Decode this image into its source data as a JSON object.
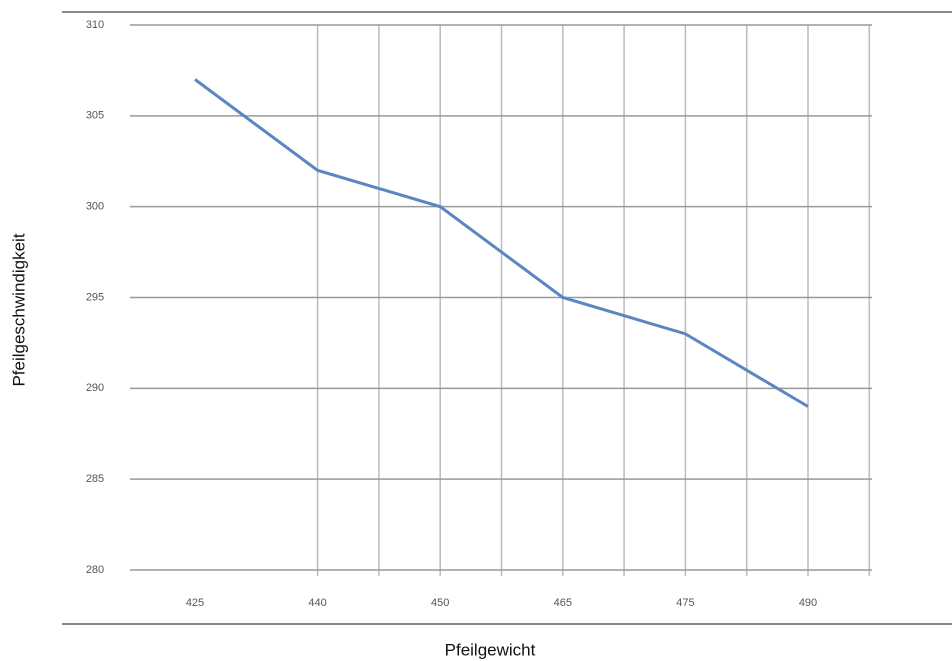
{
  "chart_data": {
    "type": "line",
    "x_label": "Pfeilgewicht",
    "y_label": "Pfeilgeschwindigkeit",
    "categories": [
      "425",
      "440",
      "450",
      "465",
      "475",
      "490"
    ],
    "series": [
      {
        "name": "Pfeilgeschwindigkeit",
        "color": "#5b86c2",
        "values": [
          307,
          302,
          300,
          295,
          293,
          289
        ]
      }
    ],
    "ylim": [
      280,
      310
    ],
    "yticks": [
      280,
      285,
      290,
      295,
      300,
      305,
      310
    ],
    "grid": true
  }
}
